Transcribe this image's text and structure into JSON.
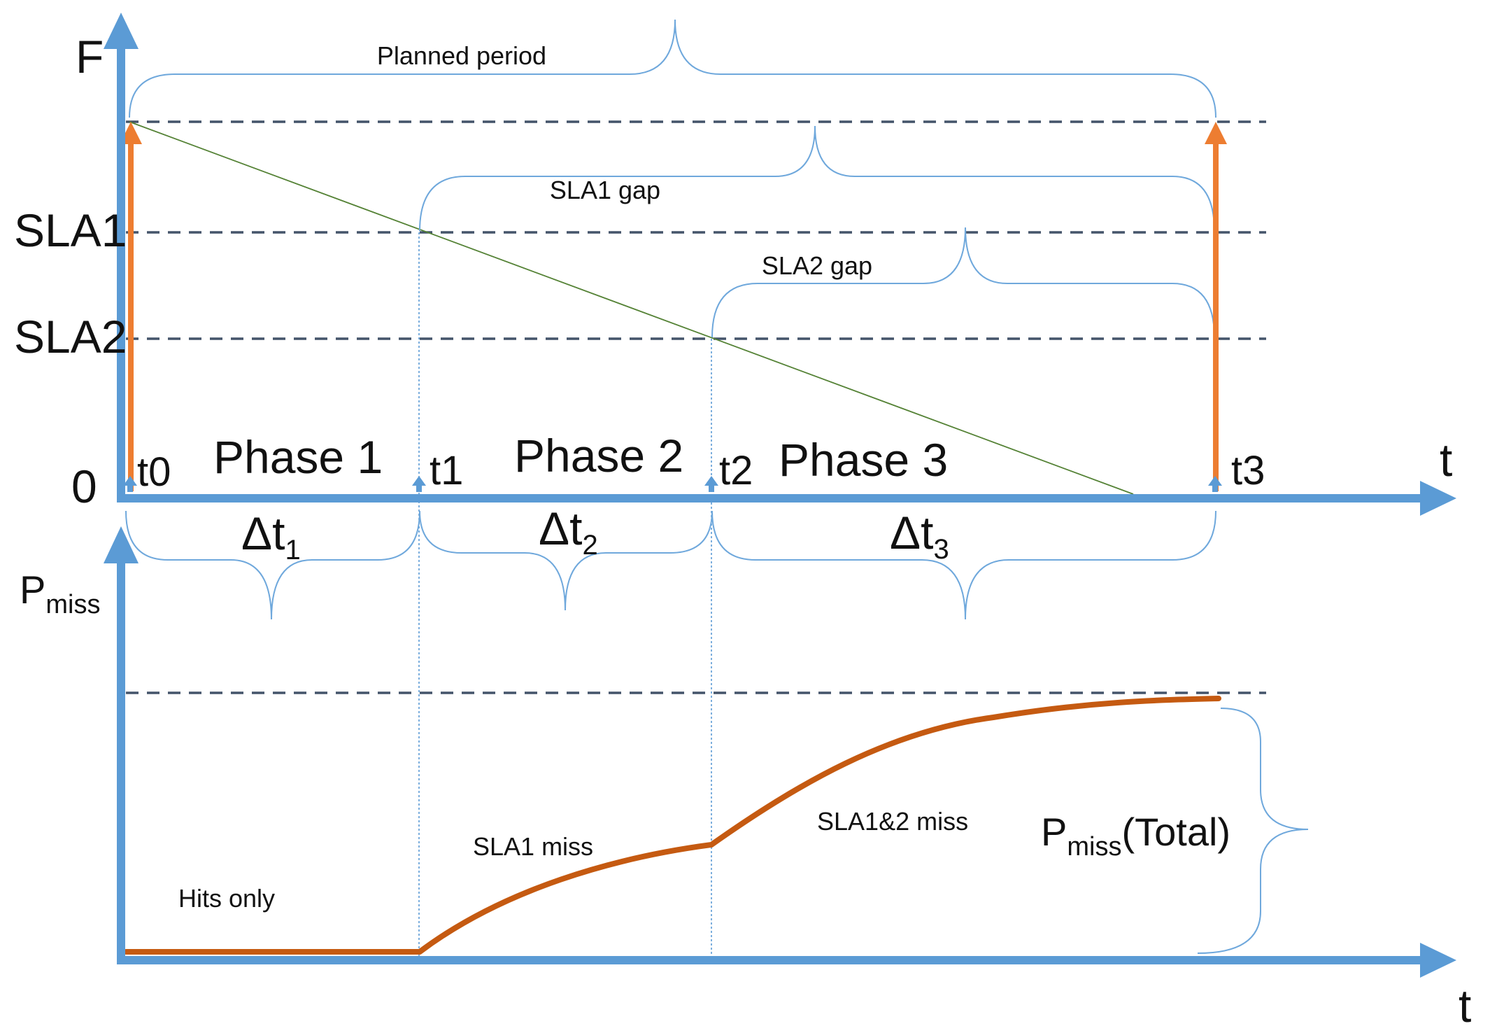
{
  "top": {
    "y_label": "F",
    "x_label": "t",
    "y_ticks": [
      "SLA1",
      "SLA2",
      "0"
    ],
    "time_points": [
      "t0",
      "t1",
      "t2",
      "t3"
    ],
    "phases": [
      "Phase 1",
      "Phase 2",
      "Phase 3"
    ],
    "braces": {
      "planned": "Planned period",
      "sla1_gap": "SLA1 gap",
      "sla2_gap": "SLA2 gap"
    },
    "durations": [
      {
        "main": "Δt",
        "sub": "1"
      },
      {
        "main": "Δt",
        "sub": "2"
      },
      {
        "main": "Δt",
        "sub": "3"
      }
    ]
  },
  "bottom": {
    "y_label_main": "P",
    "y_label_sub": "miss",
    "x_label": "t",
    "regions": [
      "Hits only",
      "SLA1 miss",
      "SLA1&2 miss"
    ],
    "total_main": "P",
    "total_sub": "miss",
    "total_suffix": "(Total)"
  },
  "colors": {
    "axis": "#5b9bd5",
    "dashed": "#44546a",
    "orange_arrow": "#ed7d31",
    "miss_curve": "#c55a11",
    "diagonal": "#548235"
  }
}
